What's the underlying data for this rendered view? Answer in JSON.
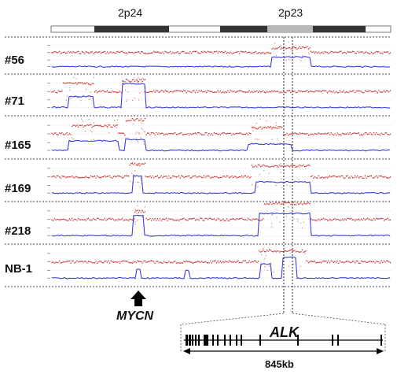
{
  "chromosome_bands": [
    "2p24",
    "2p23"
  ],
  "samples": [
    {
      "label": "#56"
    },
    {
      "label": "#71"
    },
    {
      "label": "#165"
    },
    {
      "label": "#169"
    },
    {
      "label": "#218"
    },
    {
      "label": "NB-1"
    }
  ],
  "genes": {
    "mycn": "MYCN",
    "alk": "ALK"
  },
  "alk_region_size": "845kb",
  "colors": {
    "copy_number_points": "#cc2a2a",
    "copy_number_trace": "#3a3fe0",
    "ideogram_dark": "#333333",
    "ideogram_grey": "#b8b8b8"
  }
}
